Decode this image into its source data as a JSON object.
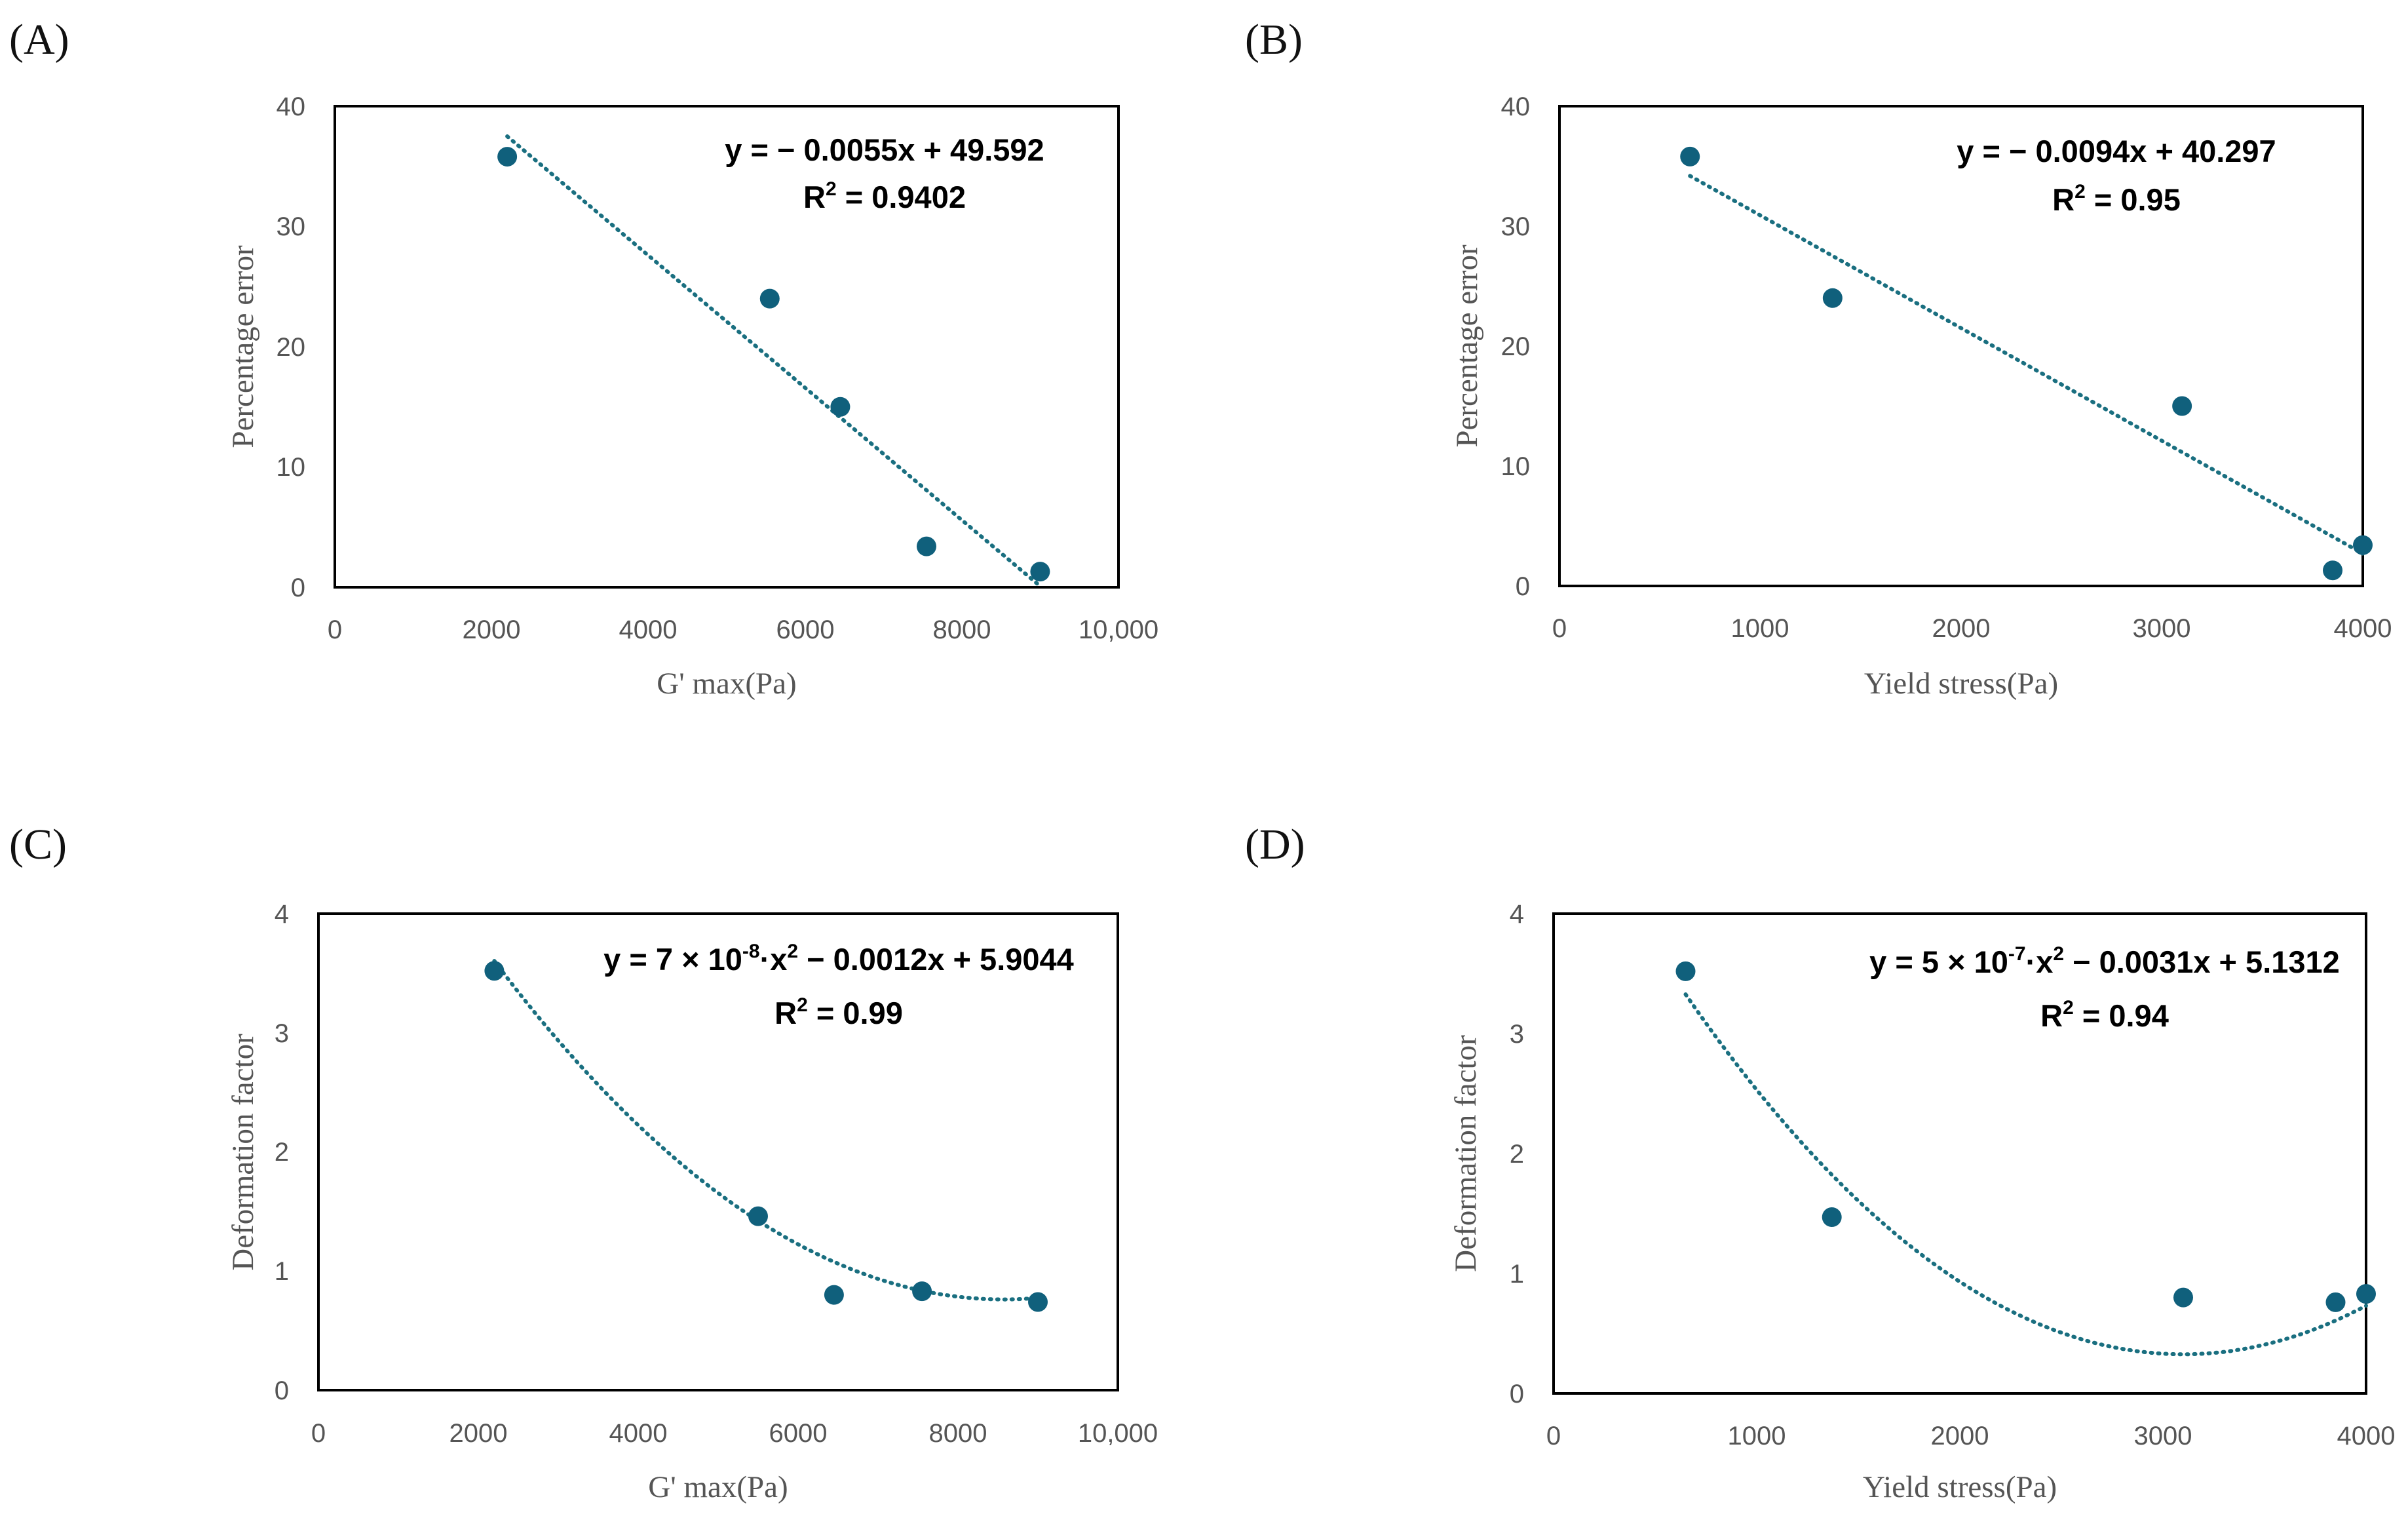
{
  "chart_data": [
    {
      "panel": "(A)",
      "type": "scatter",
      "xlabel": "G' max(Pa)",
      "ylabel": "Percentage error",
      "xlim": [
        0,
        10000
      ],
      "ylim": [
        0,
        40
      ],
      "xticks": [
        "0",
        "2000",
        "4000",
        "6000",
        "8000",
        "10,000"
      ],
      "yticks": [
        "0",
        "10",
        "20",
        "30",
        "40"
      ],
      "points": [
        {
          "x": 2200,
          "y": 35.8
        },
        {
          "x": 5550,
          "y": 24.0
        },
        {
          "x": 6450,
          "y": 15.0
        },
        {
          "x": 7550,
          "y": 3.4
        },
        {
          "x": 9000,
          "y": 1.3
        }
      ],
      "trend": {
        "kind": "linear",
        "coefficients": [
          -0.0055,
          49.592
        ],
        "x_range": [
          2200,
          9000
        ]
      },
      "equation": "y = − 0.0055x + 49.592",
      "r2_label": "R",
      "r2_sup": "2",
      "r2_value": " = 0.9402",
      "color": "#10607c"
    },
    {
      "panel": "(B)",
      "type": "scatter",
      "xlabel": "Yield stress(Pa)",
      "ylabel": "Percentage error",
      "xlim": [
        0,
        4000
      ],
      "ylim": [
        0,
        40
      ],
      "xticks": [
        "0",
        "1000",
        "2000",
        "3000",
        "4000"
      ],
      "yticks": [
        "0",
        "10",
        "20",
        "30",
        "40"
      ],
      "points": [
        {
          "x": 650,
          "y": 35.8
        },
        {
          "x": 1360,
          "y": 24.0
        },
        {
          "x": 3100,
          "y": 15.0
        },
        {
          "x": 3850,
          "y": 1.3
        },
        {
          "x": 4000,
          "y": 3.4
        }
      ],
      "trend": {
        "kind": "linear",
        "coefficients": [
          -0.0094,
          40.297
        ],
        "x_range": [
          650,
          4000
        ]
      },
      "equation": "y = − 0.0094x + 40.297",
      "r2_label": "R",
      "r2_sup": "2",
      "r2_value": " = 0.95",
      "color": "#10607c"
    },
    {
      "panel": "(C)",
      "type": "scatter",
      "xlabel": "G' max(Pa)",
      "ylabel": "Deformation factor",
      "xlim": [
        0,
        10000
      ],
      "ylim": [
        0,
        4
      ],
      "xticks": [
        "0",
        "2000",
        "4000",
        "6000",
        "8000",
        "10,000"
      ],
      "yticks": [
        "0",
        "1",
        "2",
        "3",
        "4"
      ],
      "points": [
        {
          "x": 2200,
          "y": 3.52
        },
        {
          "x": 5500,
          "y": 1.46
        },
        {
          "x": 6450,
          "y": 0.8
        },
        {
          "x": 7550,
          "y": 0.83
        },
        {
          "x": 9000,
          "y": 0.74
        }
      ],
      "trend": {
        "kind": "quadratic",
        "coefficients": [
          7e-08,
          -0.0012,
          5.9044
        ],
        "x_range": [
          2200,
          9000
        ]
      },
      "eq_prefix": "y = 7 × 10",
      "eq_sup1": "-8",
      "eq_middle": "·x",
      "eq_sup2": "2",
      "eq_suffix": " − 0.0012x + 5.9044",
      "r2_label": "R",
      "r2_sup": "2",
      "r2_value": " = 0.99",
      "color": "#10607c"
    },
    {
      "panel": "(D)",
      "type": "scatter",
      "xlabel": "Yield stress(Pa)",
      "ylabel": "Deformation factor",
      "xlim": [
        0,
        4000
      ],
      "ylim": [
        0,
        4
      ],
      "xticks": [
        "0",
        "1000",
        "2000",
        "3000",
        "4000"
      ],
      "yticks": [
        "0",
        "1",
        "2",
        "3",
        "4"
      ],
      "points": [
        {
          "x": 650,
          "y": 3.52
        },
        {
          "x": 1370,
          "y": 1.47
        },
        {
          "x": 3100,
          "y": 0.8
        },
        {
          "x": 3850,
          "y": 0.76
        },
        {
          "x": 4000,
          "y": 0.83
        }
      ],
      "trend": {
        "kind": "quadratic",
        "coefficients": [
          5e-07,
          -0.0031,
          5.1312
        ],
        "x_range": [
          650,
          4000
        ]
      },
      "eq_prefix": "y = 5 × 10",
      "eq_sup1": "-7",
      "eq_middle": "·x",
      "eq_sup2": "2",
      "eq_suffix": " − 0.0031x + 5.1312",
      "r2_label": "R",
      "r2_sup": "2",
      "r2_value": " = 0.94",
      "color": "#10607c"
    }
  ]
}
